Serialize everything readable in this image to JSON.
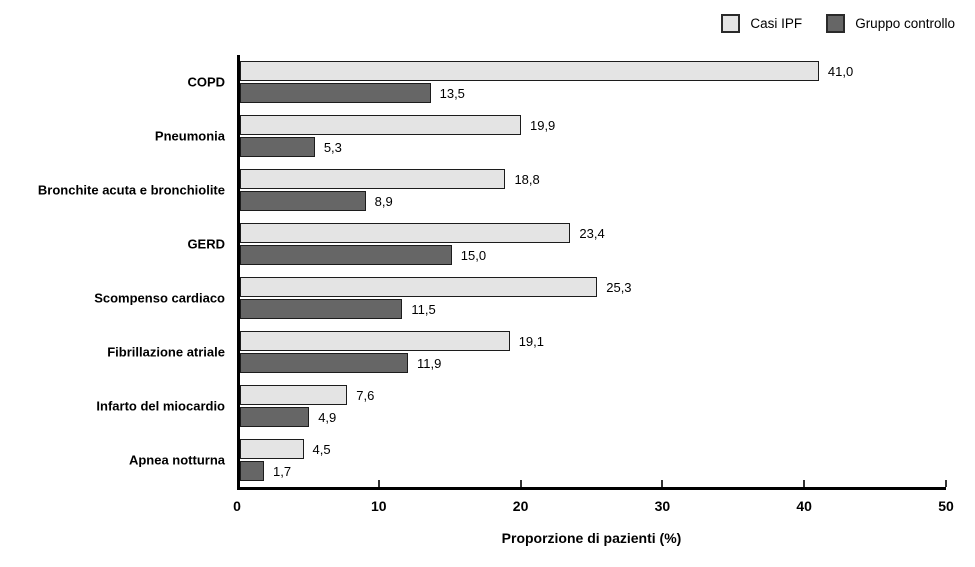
{
  "chart_data": {
    "type": "bar",
    "orientation": "horizontal",
    "title": "",
    "xlabel": "Proporzione di pazienti (%)",
    "ylabel": "",
    "xlim": [
      0,
      50
    ],
    "xticks": [
      0,
      10,
      20,
      30,
      40,
      50
    ],
    "xtick_labels": [
      "0",
      "10",
      "20",
      "30",
      "40",
      "50"
    ],
    "grid": false,
    "legend_position": "top-right",
    "categories": [
      "COPD",
      "Pneumonia",
      "Bronchite acuta e bronchiolite",
      "GERD",
      "Scompenso cardiaco",
      "Fibrillazione atriale",
      "Infarto del miocardio",
      "Apnea notturna"
    ],
    "series": [
      {
        "name": "Casi IPF",
        "color": "#e4e4e4",
        "values": [
          41.0,
          19.9,
          18.8,
          23.4,
          25.3,
          19.1,
          7.6,
          4.5
        ],
        "value_labels": [
          "41,0",
          "19,9",
          "18,8",
          "23,4",
          "25,3",
          "19,1",
          "7,6",
          "4,5"
        ]
      },
      {
        "name": "Gruppo controllo",
        "color": "#666666",
        "values": [
          13.5,
          5.3,
          8.9,
          15.0,
          11.5,
          11.9,
          4.9,
          1.7
        ],
        "value_labels": [
          "13,5",
          "5,3",
          "8,9",
          "15,0",
          "11,5",
          "11,9",
          "4,9",
          "1,7"
        ]
      }
    ]
  },
  "legend": {
    "items": [
      {
        "label": "Casi IPF",
        "color": "#e4e4e4"
      },
      {
        "label": "Gruppo controllo",
        "color": "#666666"
      }
    ]
  }
}
